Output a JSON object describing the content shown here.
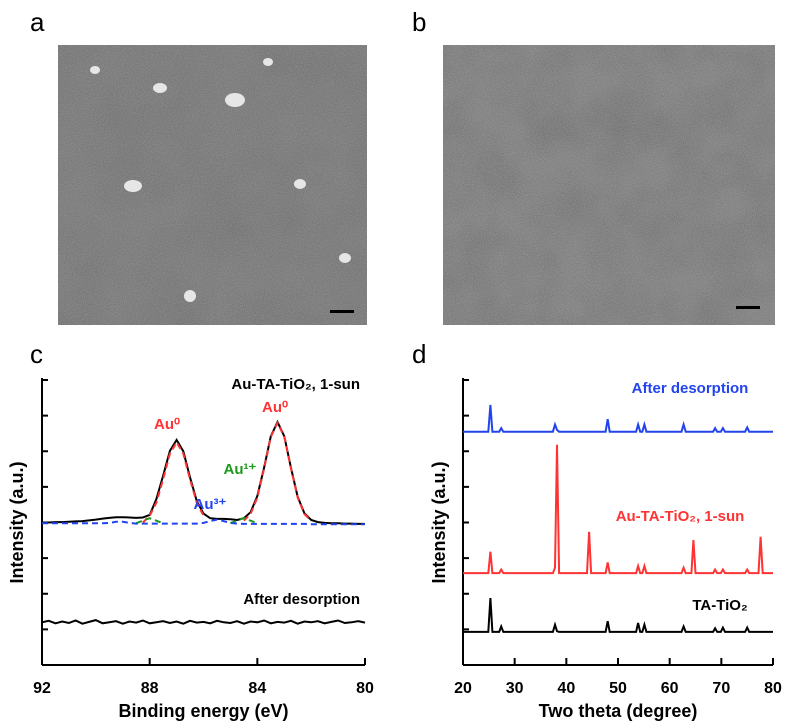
{
  "panels": [
    "a",
    "b",
    "c",
    "d"
  ],
  "chart_data": [
    {
      "type": "line",
      "x_label": "Binding energy (eV)",
      "y_label": "Intensity (a.u.)",
      "xlim": [
        92,
        80
      ],
      "xticks": [
        92,
        88,
        84,
        80
      ],
      "ylim": [
        0,
        8
      ],
      "yticks": [
        0,
        1,
        2,
        3,
        4,
        5,
        6,
        7,
        8
      ],
      "x": [
        92,
        91.75,
        91.5,
        91.25,
        91,
        90.75,
        90.5,
        90.25,
        90,
        89.75,
        89.5,
        89.25,
        89,
        88.75,
        88.5,
        88.25,
        88,
        87.75,
        87.5,
        87.25,
        87,
        86.75,
        86.5,
        86.25,
        86,
        85.75,
        85.5,
        85.25,
        85,
        84.75,
        84.5,
        84.25,
        84,
        83.75,
        83.5,
        83.25,
        83,
        82.75,
        82.5,
        82.25,
        82,
        81.75,
        81.5,
        81.25,
        81,
        80.75,
        80.5,
        80.25,
        80
      ],
      "series": [
        {
          "name": "Au-TA-TiO₂, 1-sun",
          "color": "#000000",
          "dash": false,
          "values": [
            4.0,
            4.0,
            4.01,
            4.01,
            4.02,
            4.03,
            4.04,
            4.06,
            4.08,
            4.11,
            4.13,
            4.15,
            4.15,
            4.14,
            4.13,
            4.14,
            4.21,
            4.66,
            5.31,
            6.01,
            6.32,
            6.0,
            5.27,
            4.6,
            4.25,
            4.12,
            4.1,
            4.1,
            4.09,
            4.07,
            4.12,
            4.29,
            4.74,
            5.54,
            6.42,
            6.82,
            6.42,
            5.53,
            4.72,
            4.26,
            4.07,
            4.01,
            3.99,
            3.98,
            3.98,
            3.97,
            3.97,
            3.96,
            3.96
          ]
        },
        {
          "color": "#ff3333",
          "dash": true,
          "values": [
            null,
            null,
            null,
            null,
            null,
            null,
            null,
            null,
            null,
            null,
            null,
            null,
            null,
            null,
            null,
            4.0,
            4.19,
            4.56,
            5.21,
            5.93,
            6.25,
            5.93,
            5.21,
            4.56,
            4.19,
            null,
            null,
            null,
            null,
            null,
            4.05,
            4.24,
            4.7,
            5.51,
            6.4,
            6.8,
            6.4,
            5.51,
            4.7,
            4.24,
            4.05,
            null,
            null,
            null,
            null,
            null,
            null,
            null,
            null
          ]
        },
        {
          "color": "#1a9a1a",
          "dash": true,
          "values": [
            null,
            null,
            null,
            null,
            null,
            null,
            null,
            null,
            null,
            null,
            null,
            null,
            null,
            null,
            3.98,
            4.05,
            4.12,
            4.05,
            3.98,
            null,
            null,
            null,
            null,
            null,
            null,
            null,
            null,
            null,
            3.98,
            4.05,
            4.13,
            4.05,
            3.98,
            null,
            null,
            null,
            null,
            null,
            null,
            null,
            null,
            null,
            null,
            null,
            null,
            null,
            null,
            null,
            null
          ]
        },
        {
          "color": "#2244ee",
          "dash": true,
          "values": [
            3.98,
            3.98,
            3.98,
            3.98,
            3.98,
            3.98,
            3.98,
            3.98,
            3.98,
            3.98,
            3.99,
            4.02,
            4.02,
            3.99,
            3.97,
            3.97,
            3.97,
            3.97,
            3.97,
            3.97,
            3.97,
            3.97,
            3.97,
            3.97,
            3.99,
            4.04,
            4.08,
            4.04,
            3.99,
            3.97,
            3.96,
            3.96,
            3.96,
            3.96,
            3.96,
            3.96,
            3.96,
            3.96,
            3.96,
            3.96,
            3.95,
            3.95,
            3.95,
            3.95,
            3.95,
            3.95,
            3.95,
            3.95,
            3.95
          ]
        },
        {
          "name": "After desorption",
          "color": "#000000",
          "dash": false,
          "values": [
            1.2,
            1.24,
            1.17,
            1.22,
            1.18,
            1.25,
            1.16,
            1.21,
            1.26,
            1.17,
            1.2,
            1.23,
            1.16,
            1.22,
            1.19,
            1.25,
            1.17,
            1.2,
            1.23,
            1.18,
            1.22,
            1.16,
            1.24,
            1.19,
            1.21,
            1.17,
            1.24,
            1.2,
            1.18,
            1.23,
            1.16,
            1.22,
            1.2,
            1.25,
            1.17,
            1.21,
            1.19,
            1.24,
            1.16,
            1.22,
            1.2,
            1.23,
            1.17,
            1.21,
            1.25,
            1.18,
            1.2,
            1.23,
            1.19
          ]
        }
      ],
      "annotations": [
        {
          "text": "Au⁰",
          "color": "#ff3333"
        },
        {
          "text": "Au⁰",
          "color": "#ff3333"
        },
        {
          "text": "Au¹⁺",
          "color": "#1a9a1a"
        },
        {
          "text": "Au³⁺",
          "color": "#2244ee"
        }
      ]
    },
    {
      "type": "line",
      "x_label": "Two theta (degree)",
      "y_label": "Intensity (a.u.)",
      "xlim": [
        20,
        80
      ],
      "xticks": [
        20,
        30,
        40,
        50,
        60,
        70,
        80
      ],
      "ylim": [
        0,
        8
      ],
      "yticks": [
        0,
        1,
        2,
        3,
        4,
        5,
        6,
        7,
        8
      ],
      "x": [
        20,
        24.9,
        25.3,
        25.7,
        27.0,
        27.4,
        27.8,
        37.4,
        37.8,
        38.2,
        38.6,
        44.0,
        44.4,
        44.8,
        47.6,
        48.0,
        48.4,
        53.5,
        53.9,
        54.3,
        54.7,
        55.1,
        55.5,
        62.3,
        62.7,
        63.1,
        64.2,
        64.6,
        65.0,
        68.4,
        68.8,
        69.2,
        69.9,
        70.3,
        70.7,
        74.6,
        75.0,
        75.4,
        77.2,
        77.6,
        78.0,
        80
      ],
      "series": [
        {
          "name": "After desorption",
          "color": "#2244ee",
          "dash": false,
          "values": [
            6.55,
            6.55,
            7.3,
            6.55,
            6.55,
            6.65,
            6.55,
            6.55,
            6.75,
            6.6,
            6.55,
            6.55,
            6.55,
            6.55,
            6.55,
            6.9,
            6.55,
            6.55,
            6.75,
            6.55,
            6.55,
            6.75,
            6.55,
            6.55,
            6.75,
            6.55,
            6.55,
            6.55,
            6.55,
            6.55,
            6.65,
            6.55,
            6.55,
            6.65,
            6.55,
            6.55,
            6.67,
            6.55,
            6.55,
            6.55,
            6.55,
            6.55
          ]
        },
        {
          "name": "Au-TA-TiO₂, 1-sun",
          "color": "#ff3333",
          "dash": false,
          "values": [
            2.58,
            2.58,
            3.18,
            2.58,
            2.58,
            2.68,
            2.58,
            2.58,
            2.73,
            6.18,
            2.58,
            2.58,
            3.74,
            2.58,
            2.58,
            2.88,
            2.58,
            2.58,
            2.78,
            2.58,
            2.58,
            2.78,
            2.58,
            2.58,
            2.73,
            2.58,
            2.58,
            3.51,
            2.58,
            2.58,
            2.68,
            2.58,
            2.58,
            2.68,
            2.58,
            2.58,
            2.68,
            2.58,
            2.58,
            3.6,
            2.58,
            2.58
          ]
        },
        {
          "name": "TA-TiO₂",
          "color": "#000000",
          "dash": false,
          "values": [
            0.93,
            0.93,
            1.88,
            0.93,
            0.93,
            1.08,
            0.93,
            0.93,
            1.13,
            0.95,
            0.93,
            0.93,
            0.93,
            0.93,
            0.93,
            1.23,
            0.93,
            0.93,
            1.18,
            0.93,
            0.93,
            1.13,
            0.93,
            0.93,
            1.08,
            0.93,
            0.93,
            0.93,
            0.93,
            0.93,
            1.03,
            0.93,
            0.93,
            1.05,
            0.93,
            0.93,
            1.05,
            0.93,
            0.93,
            0.93,
            0.93,
            0.93
          ]
        }
      ]
    }
  ]
}
